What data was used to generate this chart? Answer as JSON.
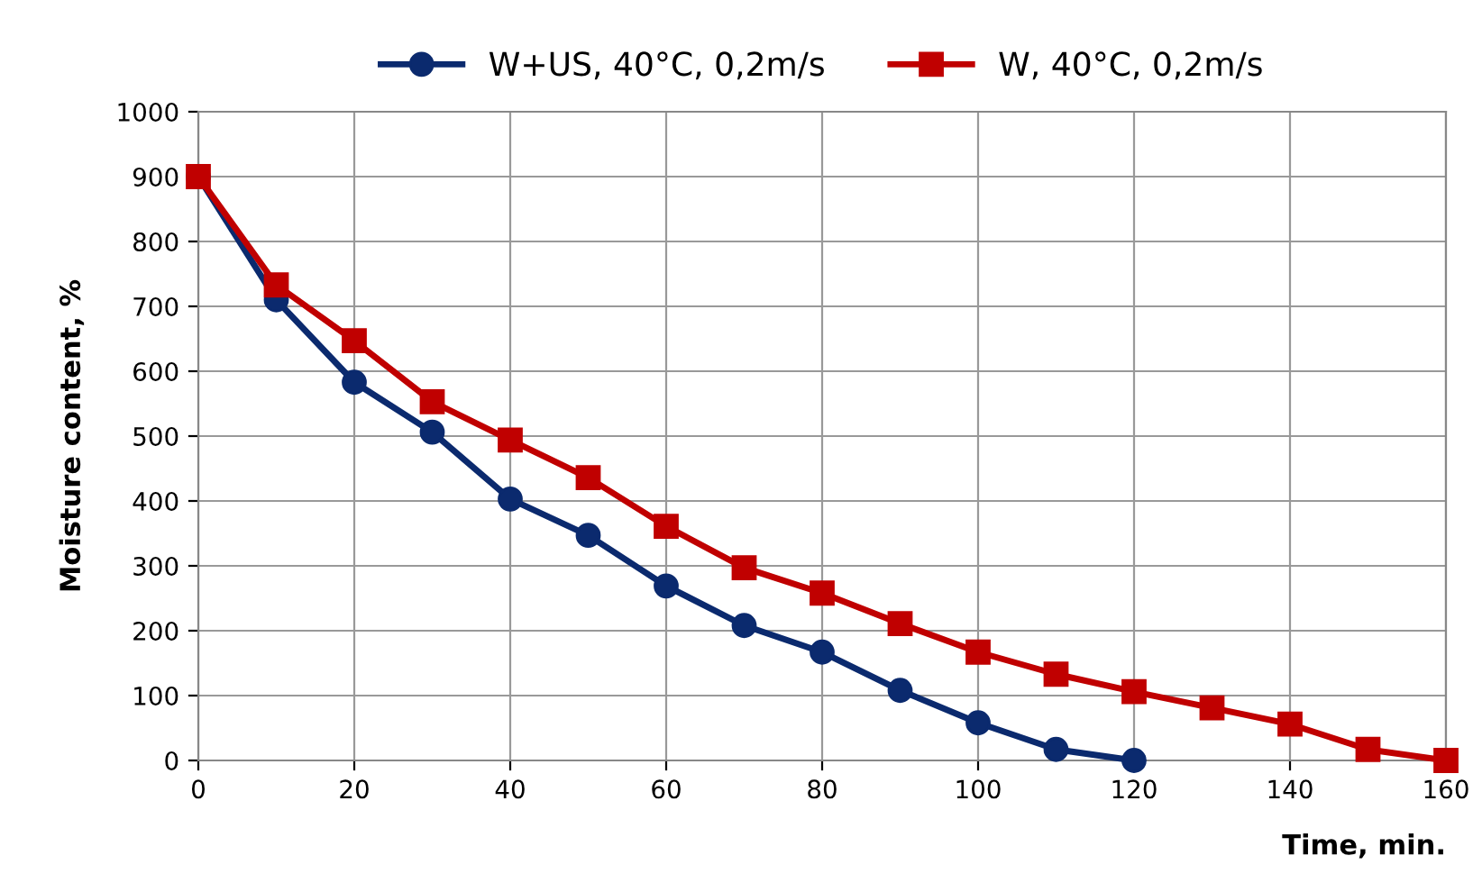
{
  "chart_data": {
    "type": "line",
    "xlabel": "Time, min.",
    "ylabel": "Moisture content, %",
    "x": [
      0,
      10,
      20,
      30,
      40,
      50,
      60,
      70,
      80,
      90,
      100,
      110,
      120,
      130,
      140,
      150,
      160
    ],
    "series": [
      {
        "name": "W+US, 40°C, 0,2m/s",
        "color": "#0b2a6e",
        "marker": "circle",
        "values": [
          900,
          710,
          583,
          506,
          403,
          347,
          269,
          208,
          167,
          108,
          58,
          17,
          0,
          null,
          null,
          null,
          null
        ]
      },
      {
        "name": "W, 40°C, 0,2m/s",
        "color": "#c00000",
        "marker": "square",
        "values": [
          900,
          733,
          647,
          553,
          494,
          436,
          361,
          297,
          258,
          211,
          167,
          133,
          106,
          81,
          56,
          17,
          0
        ]
      }
    ],
    "xlim": [
      0,
      160
    ],
    "xticks": [
      0,
      20,
      40,
      60,
      80,
      100,
      120,
      140,
      160
    ],
    "ylim": [
      0,
      1000
    ],
    "yticks": [
      0,
      100,
      200,
      300,
      400,
      500,
      600,
      700,
      800,
      900,
      1000
    ],
    "grid": true,
    "legend": "top",
    "line_style": "solid"
  }
}
